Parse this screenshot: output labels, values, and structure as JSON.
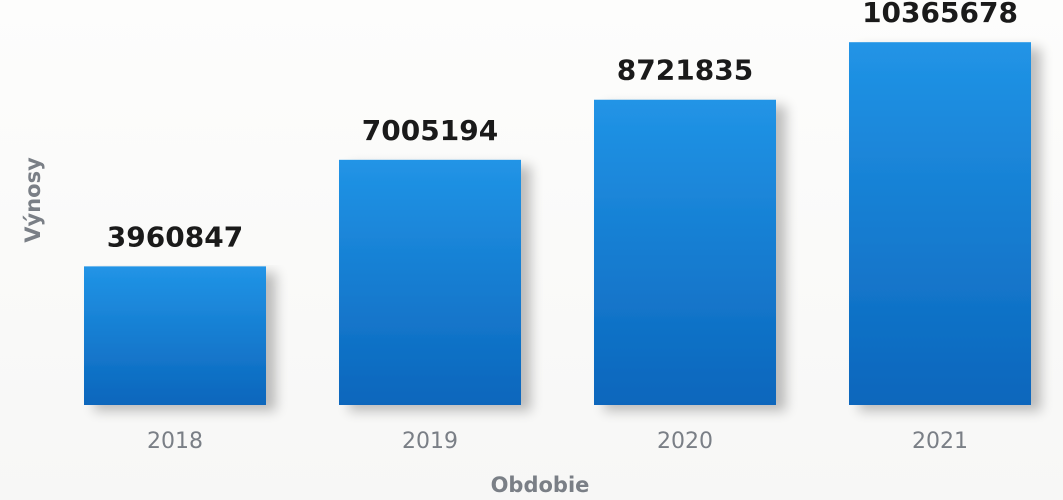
{
  "chart_data": {
    "type": "bar",
    "categories": [
      "2018",
      "2019",
      "2020",
      "2021"
    ],
    "values": [
      3960847,
      7005194,
      8721835,
      10365678
    ],
    "data_labels": [
      "3960847",
      "7005194",
      "8721835",
      "10365678"
    ],
    "title": "",
    "xlabel": "Obdobie",
    "ylabel": "Výnosy",
    "ylim": [
      0,
      11000000
    ],
    "grid": false,
    "legend": "none",
    "colors": {
      "bar_top": "#1e8fe0",
      "bar_bottom": "#0a63b8",
      "value_text": "#1a1a1a",
      "axis_text": "#7a7f86",
      "axis_line": "#cfd3d8"
    }
  }
}
